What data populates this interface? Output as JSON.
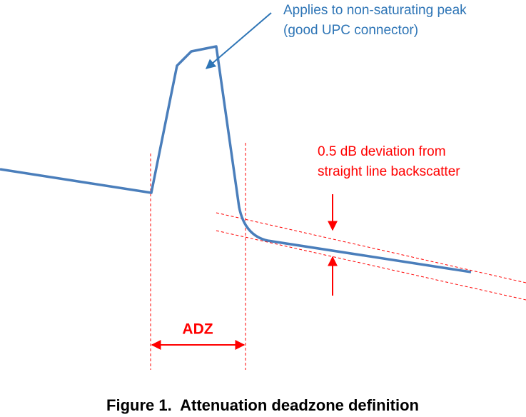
{
  "annotations": {
    "peak_note": [
      "Applies to non-saturating peak",
      "(good UPC connector)"
    ],
    "deviation_note": [
      "0.5 dB deviation from",
      "straight line backscatter"
    ],
    "deadzone_label": "ADZ"
  },
  "caption": "Figure 1.  Attenuation deadzone definition"
}
